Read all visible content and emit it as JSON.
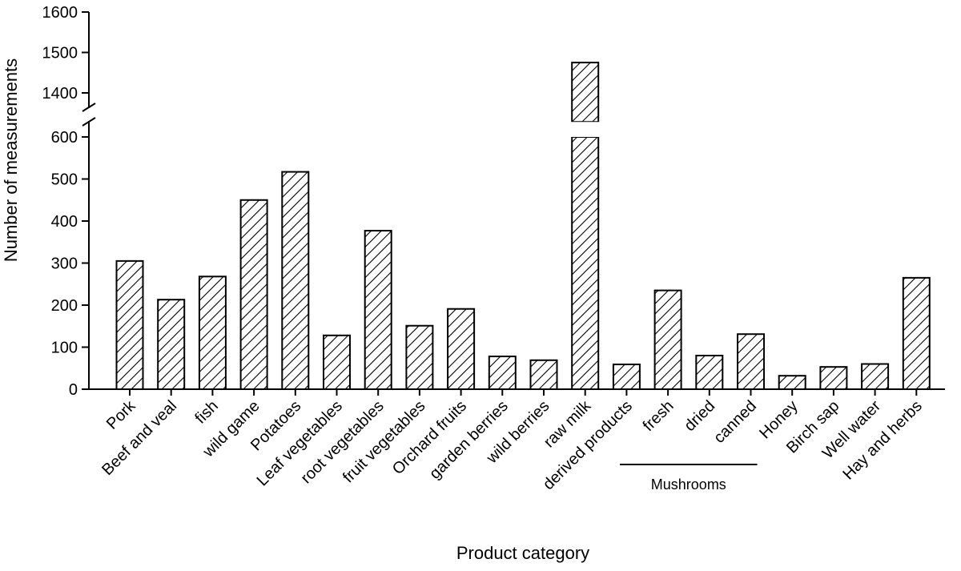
{
  "chart_data": {
    "type": "bar",
    "xlabel": "Product category",
    "ylabel": "Number of measurements",
    "categories": [
      "Pork",
      "Beef and veal",
      "fish",
      "wild game",
      "Potatoes",
      "Leaf vegetables",
      "root vegetables",
      "fruit vegetables",
      "Orchard fruits",
      "garden berries",
      "wild berries",
      "raw milk",
      "derived products",
      "fresh",
      "dried",
      "canned",
      "Honey",
      "Birch sap",
      "Well water",
      "Hay and herbs"
    ],
    "values": [
      305,
      213,
      268,
      450,
      517,
      128,
      377,
      151,
      191,
      78,
      69,
      1475,
      59,
      235,
      80,
      131,
      32,
      53,
      60,
      265
    ],
    "y_axis_segments": [
      {
        "range": [
          0,
          600
        ],
        "ticks": [
          0,
          100,
          200,
          300,
          400,
          500,
          600
        ]
      },
      {
        "range": [
          1350,
          1600
        ],
        "ticks": [
          1400,
          1500,
          1600
        ]
      }
    ],
    "axis_break": true,
    "bar_fill": "diagonal hatching",
    "grid": false,
    "legend": "none",
    "group_labels": [
      {
        "label": "Mushrooms",
        "categories": [
          "fresh",
          "dried",
          "canned"
        ]
      }
    ],
    "colors": {
      "bar_stroke": "#000000",
      "bar_fill": "#ffffff",
      "hatch": "#000000"
    }
  }
}
